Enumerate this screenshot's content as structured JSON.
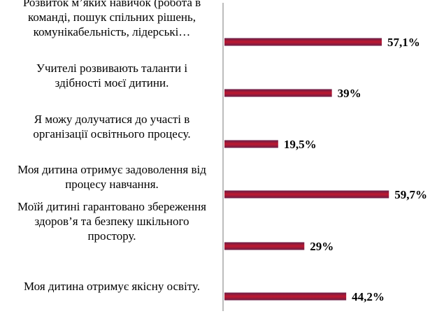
{
  "chart_data": {
    "type": "bar",
    "orientation": "horizontal",
    "categories": [
      [
        "Розвиток м’яких навичок (робота в",
        "команді, пошук спільних рішень,",
        "комунікабельність, лідерські…"
      ],
      [
        "Учителі розвивають таланти і",
        "здібності моєї дитини."
      ],
      [
        "Я можу долучатися до участі в",
        "організації освітнього процесу."
      ],
      [
        "Моя дитина отримує задоволення від",
        "процесу навчання."
      ],
      [
        "Моїй дитині гарантовано збереження",
        "здоров’я та безпеку шкільного",
        "простору."
      ],
      [
        "Моя дитина отримує якісну освіту."
      ]
    ],
    "values": [
      57.1,
      39,
      19.5,
      59.7,
      29,
      44.2
    ],
    "value_labels": [
      "57,1%",
      "39%",
      "19,5%",
      "59,7%",
      "29%",
      "44,2%"
    ],
    "xlim": [
      0,
      100
    ],
    "grid": false,
    "legend": "none",
    "colors": {
      "bar_center": "#c0172f",
      "bar_edge": "#6a1f48",
      "axis": "#a6a6a6"
    }
  }
}
